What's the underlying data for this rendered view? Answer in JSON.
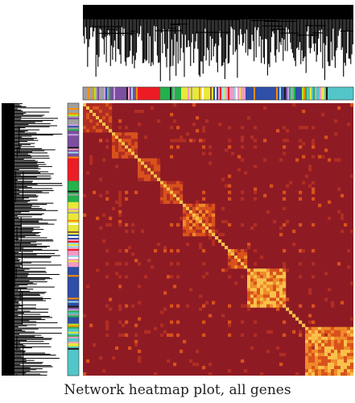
{
  "caption": "Network heatmap plot, all genes",
  "chart_data": {
    "type": "heatmap",
    "title": "Network heatmap plot, all genes",
    "subject": "all genes",
    "clustering": "hierarchical (dendrograms on top and left)",
    "row_dendrogram": true,
    "column_dendrogram": true,
    "symmetric": true,
    "colorscale": [
      "#8e1a24",
      "#b02e22",
      "#d9521c",
      "#f08a2a",
      "#f8c24a",
      "#fff1a8"
    ],
    "background_color": "#8e1a24",
    "module_colors": [
      "#53c6c9",
      "#2f4fa8",
      "#7c4fa0",
      "#f29ac6",
      "#e8e83a",
      "#22b14c",
      "#ed1c24",
      "#1a1a1a",
      "#8b5a2b",
      "#a0a0a0",
      "#ff8c00",
      "#b5e61d",
      "#99d9ea",
      "#c7a0e0",
      "#ffffff"
    ],
    "module_blocks": [
      {
        "module": "#53c6c9",
        "start": 0.82,
        "end": 1.0,
        "intensity": 0.85
      },
      {
        "module": "#2f4fa8",
        "start": 0.6,
        "end": 0.74,
        "intensity": 0.9
      },
      {
        "module": "#f29ac6",
        "start": 0.53,
        "end": 0.6,
        "intensity": 0.6
      },
      {
        "module": "#e8e83a",
        "start": 0.36,
        "end": 0.48,
        "intensity": 0.55
      },
      {
        "module": "#22b14c",
        "start": 0.28,
        "end": 0.36,
        "intensity": 0.5
      },
      {
        "module": "#ed1c24",
        "start": 0.2,
        "end": 0.28,
        "intensity": 0.45
      },
      {
        "module": "#7c4fa0",
        "start": 0.1,
        "end": 0.2,
        "intensity": 0.5
      },
      {
        "module": "#a0a0a0",
        "start": 0.0,
        "end": 0.1,
        "intensity": 0.35
      }
    ]
  }
}
